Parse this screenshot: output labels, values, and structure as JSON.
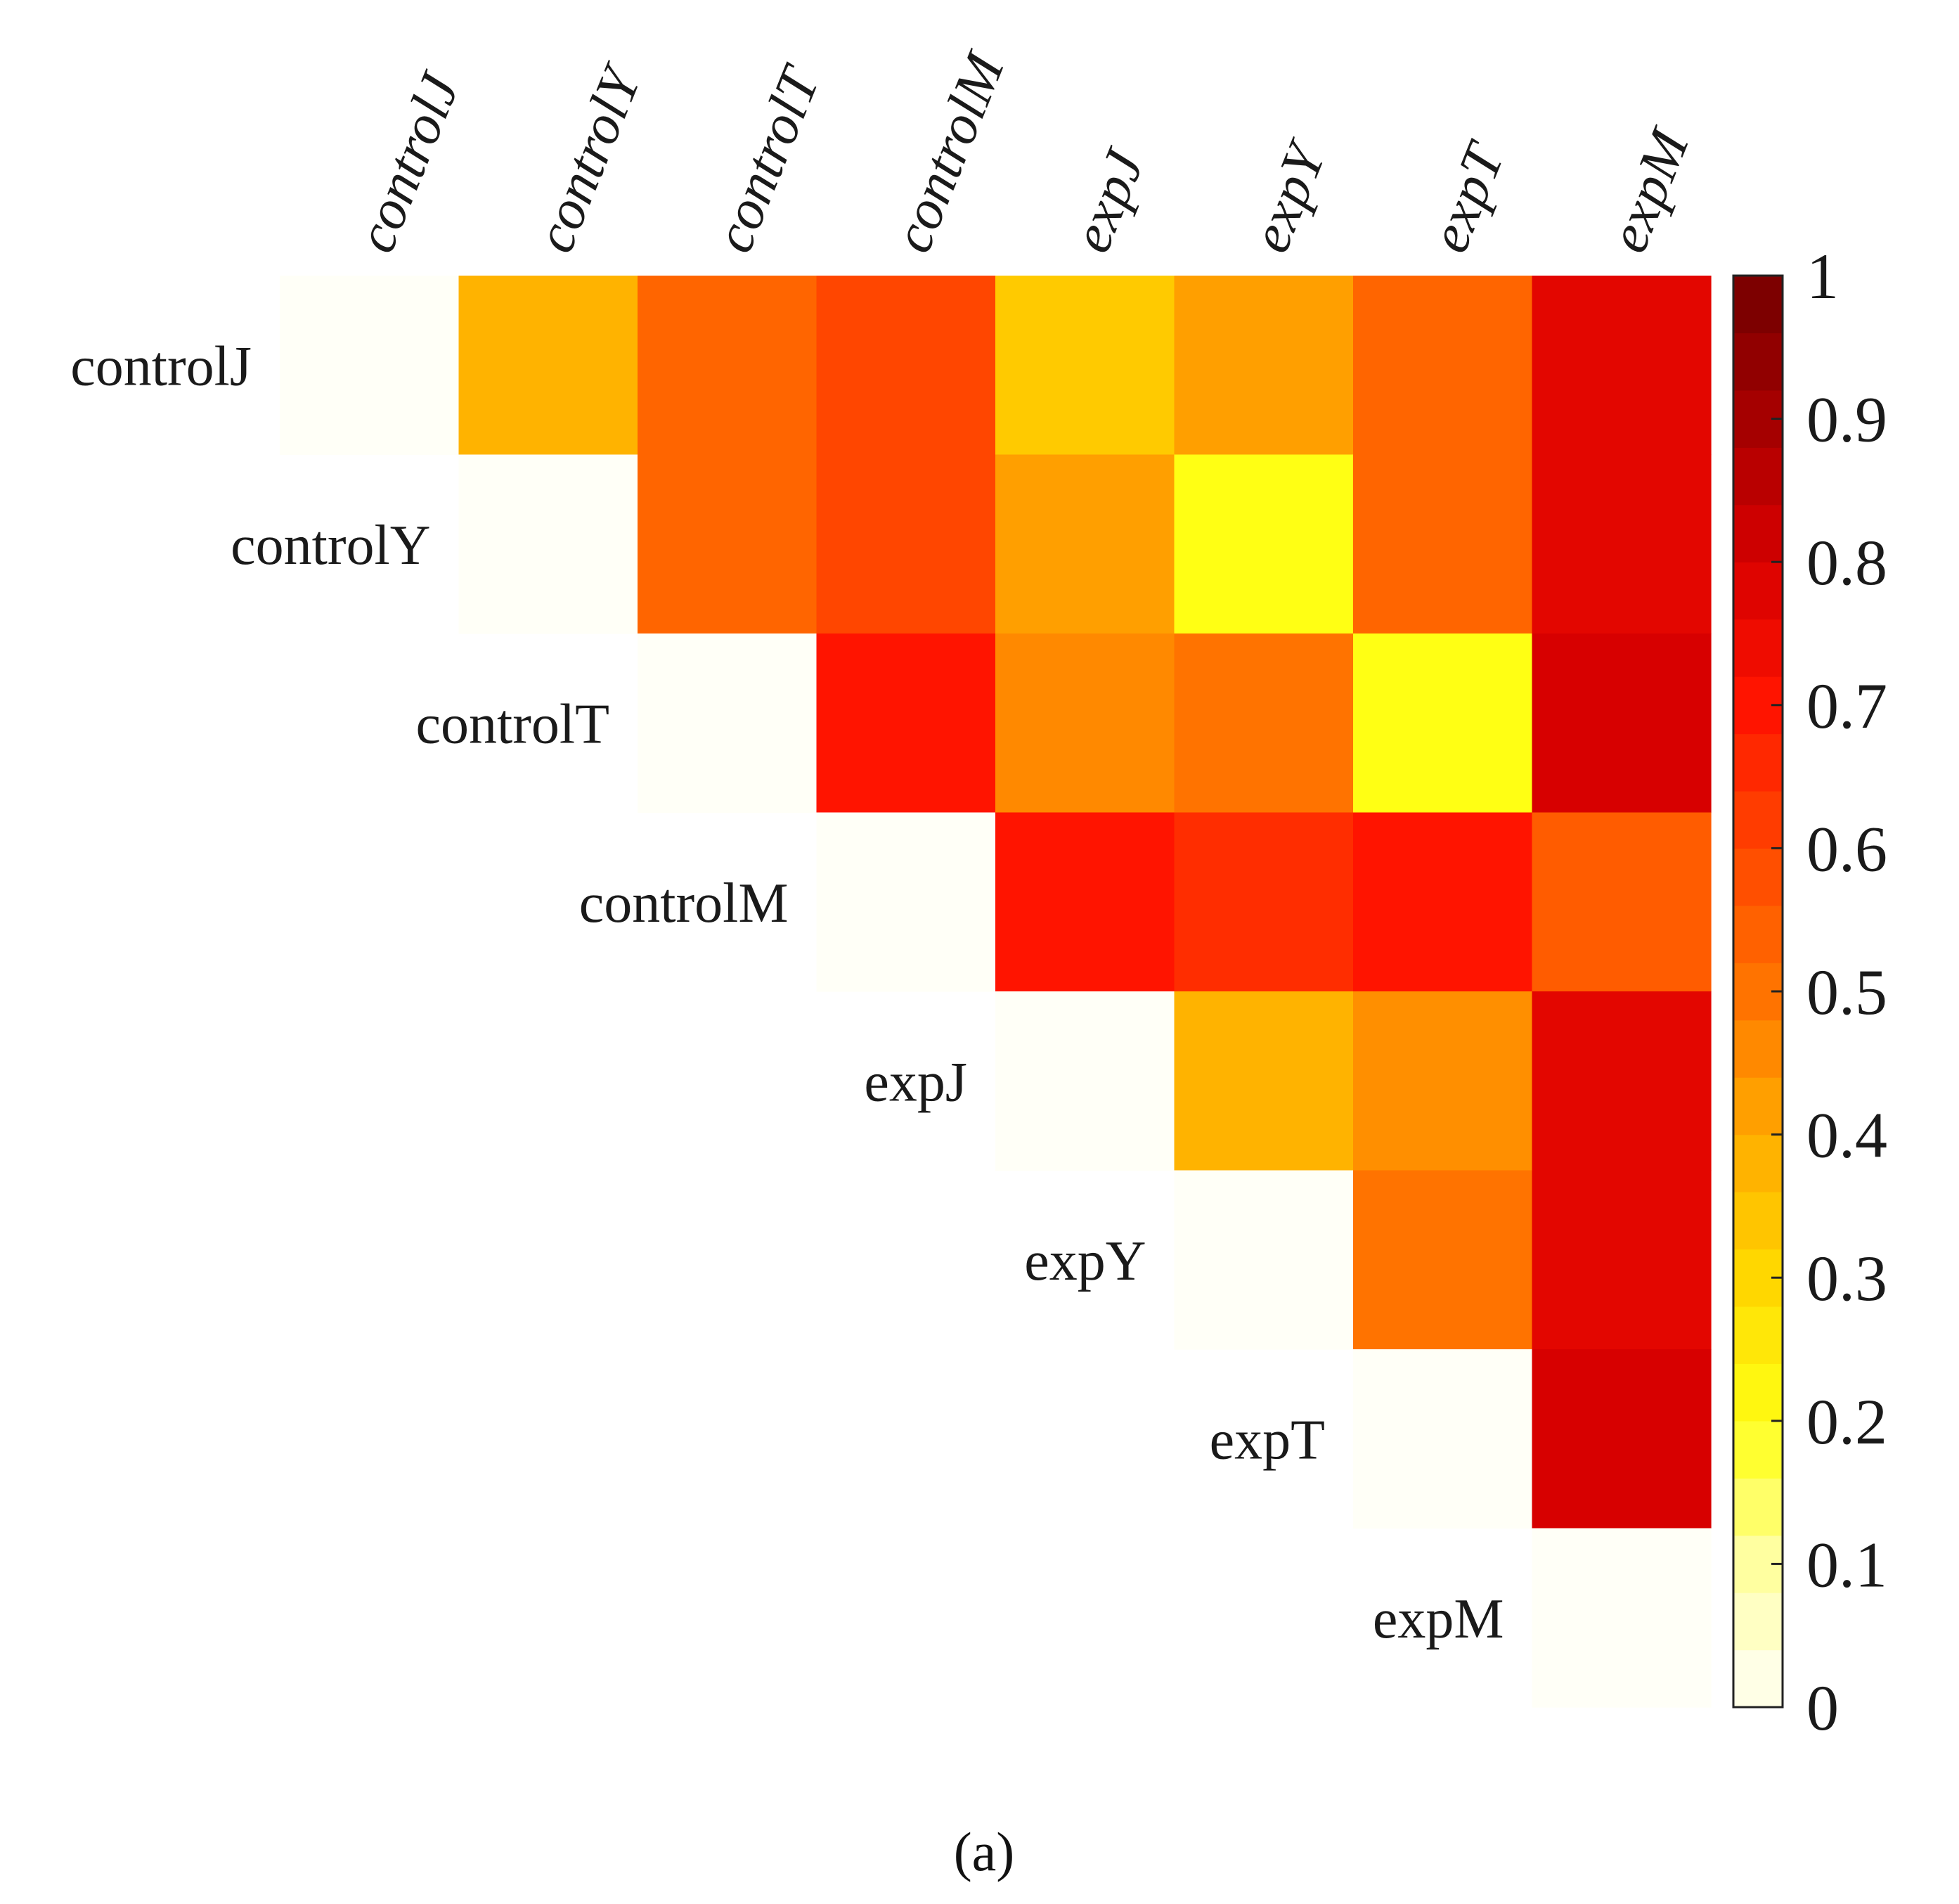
{
  "chart_data": {
    "type": "heatmap",
    "rows": [
      "controlJ",
      "controlY",
      "controlT",
      "controlM",
      "expJ",
      "expY",
      "expT",
      "expM"
    ],
    "columns": [
      "controlJ",
      "controlY",
      "controlT",
      "controlM",
      "expJ",
      "expY",
      "expT",
      "expM"
    ],
    "values": [
      [
        0.0,
        0.38,
        0.53,
        0.6,
        0.33,
        0.42,
        0.53,
        0.77
      ],
      [
        null,
        0.0,
        0.53,
        0.6,
        0.42,
        0.2,
        0.53,
        0.77
      ],
      [
        null,
        null,
        0.0,
        0.7,
        0.46,
        0.5,
        0.2,
        0.8
      ],
      [
        null,
        null,
        null,
        0.0,
        0.7,
        0.65,
        0.7,
        0.55
      ],
      [
        null,
        null,
        null,
        null,
        0.0,
        0.38,
        0.45,
        0.77
      ],
      [
        null,
        null,
        null,
        null,
        null,
        0.0,
        0.5,
        0.77
      ],
      [
        null,
        null,
        null,
        null,
        null,
        null,
        0.0,
        0.8
      ],
      [
        null,
        null,
        null,
        null,
        null,
        null,
        null,
        0.0
      ]
    ],
    "colorbar": {
      "min": 0,
      "max": 1,
      "ticks": [
        "0",
        "0.1",
        "0.2",
        "0.3",
        "0.4",
        "0.5",
        "0.6",
        "0.7",
        "0.8",
        "0.9",
        "1"
      ],
      "steps": 25,
      "colormap": "hot (reversed): white-yellow-orange-red-dark red"
    },
    "panel_label": "(a)",
    "title": "",
    "xlabel": "",
    "ylabel": ""
  }
}
